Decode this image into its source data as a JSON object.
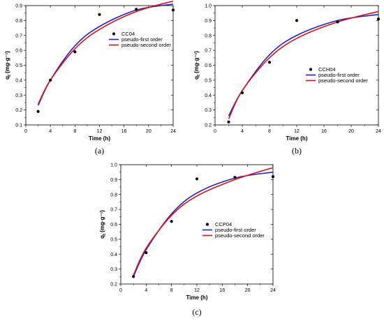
{
  "chart_data": [
    {
      "type": "scatter",
      "caption": "(a)",
      "xlabel": "Time (h)",
      "ylabel": "qt (mg·g⁻¹)",
      "xlim": [
        0,
        24
      ],
      "ylim": [
        0.1,
        0.9
      ],
      "xticks": [
        0,
        4,
        8,
        12,
        16,
        20,
        24
      ],
      "yticks": [
        0.1,
        0.2,
        0.3,
        0.4,
        0.5,
        0.6,
        0.7,
        0.8,
        0.9
      ],
      "legend_position": "right",
      "series": [
        {
          "name": "CC04",
          "kind": "points",
          "color": "#000000",
          "x": [
            2,
            4,
            8,
            12,
            18,
            24
          ],
          "y": [
            0.19,
            0.4,
            0.59,
            0.84,
            0.875,
            0.87
          ]
        },
        {
          "name": "pseudo-first order",
          "kind": "line",
          "color": "#1f1fd8",
          "x": [
            2,
            4,
            8,
            12,
            18,
            24
          ],
          "y": [
            0.23,
            0.4,
            0.63,
            0.76,
            0.87,
            0.91
          ]
        },
        {
          "name": "pseudo-second order",
          "kind": "line",
          "color": "#e01010",
          "x": [
            2,
            4,
            8,
            12,
            18,
            24
          ],
          "y": [
            0.24,
            0.4,
            0.61,
            0.74,
            0.86,
            0.93
          ]
        }
      ]
    },
    {
      "type": "scatter",
      "caption": "(b)",
      "xlabel": "Time (h)",
      "ylabel": "qt (mg·g⁻¹)",
      "xlim": [
        0,
        24
      ],
      "ylim": [
        0.2,
        1.0
      ],
      "xticks": [
        0,
        4,
        8,
        12,
        16,
        20,
        24
      ],
      "yticks": [
        0.2,
        0.3,
        0.4,
        0.5,
        0.6,
        0.7,
        0.8,
        0.9,
        1.0
      ],
      "legend_position": "right",
      "series": [
        {
          "name": "CCH04",
          "kind": "points",
          "color": "#000000",
          "x": [
            2,
            4,
            8,
            12,
            18,
            24
          ],
          "y": [
            0.22,
            0.415,
            0.62,
            0.9,
            0.89,
            0.91
          ]
        },
        {
          "name": "pseudo-first order",
          "kind": "line",
          "color": "#1f1fd8",
          "x": [
            2,
            4,
            8,
            12,
            18,
            24
          ],
          "y": [
            0.26,
            0.43,
            0.67,
            0.8,
            0.9,
            0.94
          ]
        },
        {
          "name": "pseudo-second order",
          "kind": "line",
          "color": "#e01010",
          "x": [
            2,
            4,
            8,
            12,
            18,
            24
          ],
          "y": [
            0.24,
            0.43,
            0.65,
            0.78,
            0.89,
            0.96
          ]
        }
      ]
    },
    {
      "type": "scatter",
      "caption": "(c)",
      "xlabel": "Time (h)",
      "ylabel": "qt (mg·g⁻¹)",
      "xlim": [
        0,
        24
      ],
      "ylim": [
        0.2,
        1.0
      ],
      "xticks": [
        0,
        4,
        8,
        12,
        16,
        20,
        24
      ],
      "yticks": [
        0.2,
        0.3,
        0.4,
        0.5,
        0.6,
        0.7,
        0.8,
        0.9,
        1.0
      ],
      "legend_position": "right",
      "series": [
        {
          "name": "CCP04",
          "kind": "points",
          "color": "#000000",
          "x": [
            2,
            4,
            8,
            12,
            18,
            24
          ],
          "y": [
            0.25,
            0.41,
            0.62,
            0.905,
            0.915,
            0.92
          ]
        },
        {
          "name": "pseudo-first order",
          "kind": "line",
          "color": "#1f1fd8",
          "x": [
            2,
            4,
            8,
            12,
            18,
            24
          ],
          "y": [
            0.25,
            0.43,
            0.67,
            0.81,
            0.91,
            0.95
          ]
        },
        {
          "name": "pseudo-second order",
          "kind": "line",
          "color": "#e01010",
          "x": [
            2,
            4,
            8,
            12,
            18,
            24
          ],
          "y": [
            0.26,
            0.44,
            0.66,
            0.79,
            0.9,
            0.98
          ]
        }
      ]
    }
  ]
}
